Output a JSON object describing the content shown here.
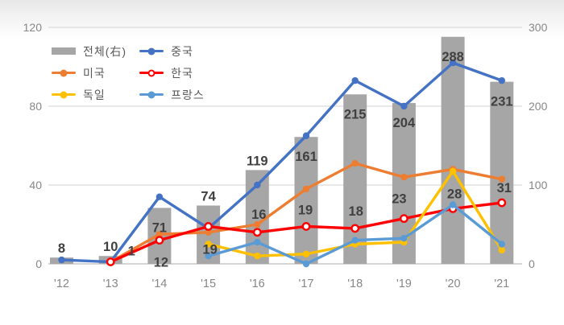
{
  "chart_data": {
    "type": "combo",
    "title": "",
    "categories": [
      "'12",
      "'13",
      "'14",
      "'15",
      "'16",
      "'17",
      "'18",
      "'19",
      "'20",
      "'21"
    ],
    "left_axis": {
      "range": [
        0,
        120
      ],
      "ticks": [
        0,
        40,
        80,
        120
      ],
      "side": "left"
    },
    "right_axis": {
      "range": [
        0,
        300
      ],
      "ticks": [
        0,
        100,
        200,
        300
      ],
      "side": "right"
    },
    "grid": "horizontal",
    "bar_series": {
      "name": "전체(右)",
      "axis": "right",
      "color": "#a6a6a6",
      "values": [
        8,
        10,
        71,
        74,
        119,
        161,
        215,
        204,
        288,
        231
      ],
      "data_labels": [
        8,
        10,
        71,
        74,
        119,
        161,
        215,
        204,
        288,
        231
      ]
    },
    "line_series": [
      {
        "name": "중국",
        "axis": "left",
        "color": "#4472c4",
        "marker": "filled-circle",
        "values": [
          2,
          1,
          34,
          18,
          40,
          65,
          93,
          80,
          102,
          93
        ],
        "data_labels": null
      },
      {
        "name": "미국",
        "axis": "left",
        "color": "#ed7d31",
        "marker": "filled-circle",
        "values": [
          null,
          1,
          15,
          16,
          20,
          38,
          51,
          44,
          48,
          43
        ],
        "data_labels": null
      },
      {
        "name": "한국",
        "axis": "left",
        "color": "#fe0000",
        "marker": "open-circle",
        "values": [
          null,
          1,
          12,
          19,
          16,
          19,
          18,
          23,
          28,
          31
        ],
        "data_labels": [
          null,
          "1",
          "12",
          "19",
          "16",
          "19",
          "18",
          "23",
          "28",
          "31"
        ]
      },
      {
        "name": "독일",
        "axis": "left",
        "color": "#ffc000",
        "marker": "filled-circle",
        "values": [
          null,
          null,
          null,
          10,
          4,
          5,
          10,
          11,
          47,
          7
        ],
        "data_labels": null
      },
      {
        "name": "프랑스",
        "axis": "left",
        "color": "#5b9bd5",
        "marker": "filled-circle",
        "values": [
          null,
          null,
          null,
          4,
          11,
          0,
          12,
          13,
          30,
          10
        ],
        "data_labels": null
      }
    ],
    "legend": [
      {
        "label": "전체(右)",
        "marker": "bar",
        "color": "#a6a6a6"
      },
      {
        "label": "미국",
        "marker": "filled-circle",
        "color": "#ed7d31"
      },
      {
        "label": "독일",
        "marker": "filled-circle",
        "color": "#ffc000"
      },
      {
        "label": "중국",
        "marker": "filled-circle",
        "color": "#4472c4"
      },
      {
        "label": "한국",
        "marker": "open-circle",
        "color": "#fe0000"
      },
      {
        "label": "프랑스",
        "marker": "filled-circle",
        "color": "#5b9bd5"
      }
    ],
    "colors": {
      "grid_line": "#dbdbdb",
      "axis_line": "#c7c7c7",
      "tick_text": "#878787",
      "data_label_text": "#404040"
    }
  }
}
